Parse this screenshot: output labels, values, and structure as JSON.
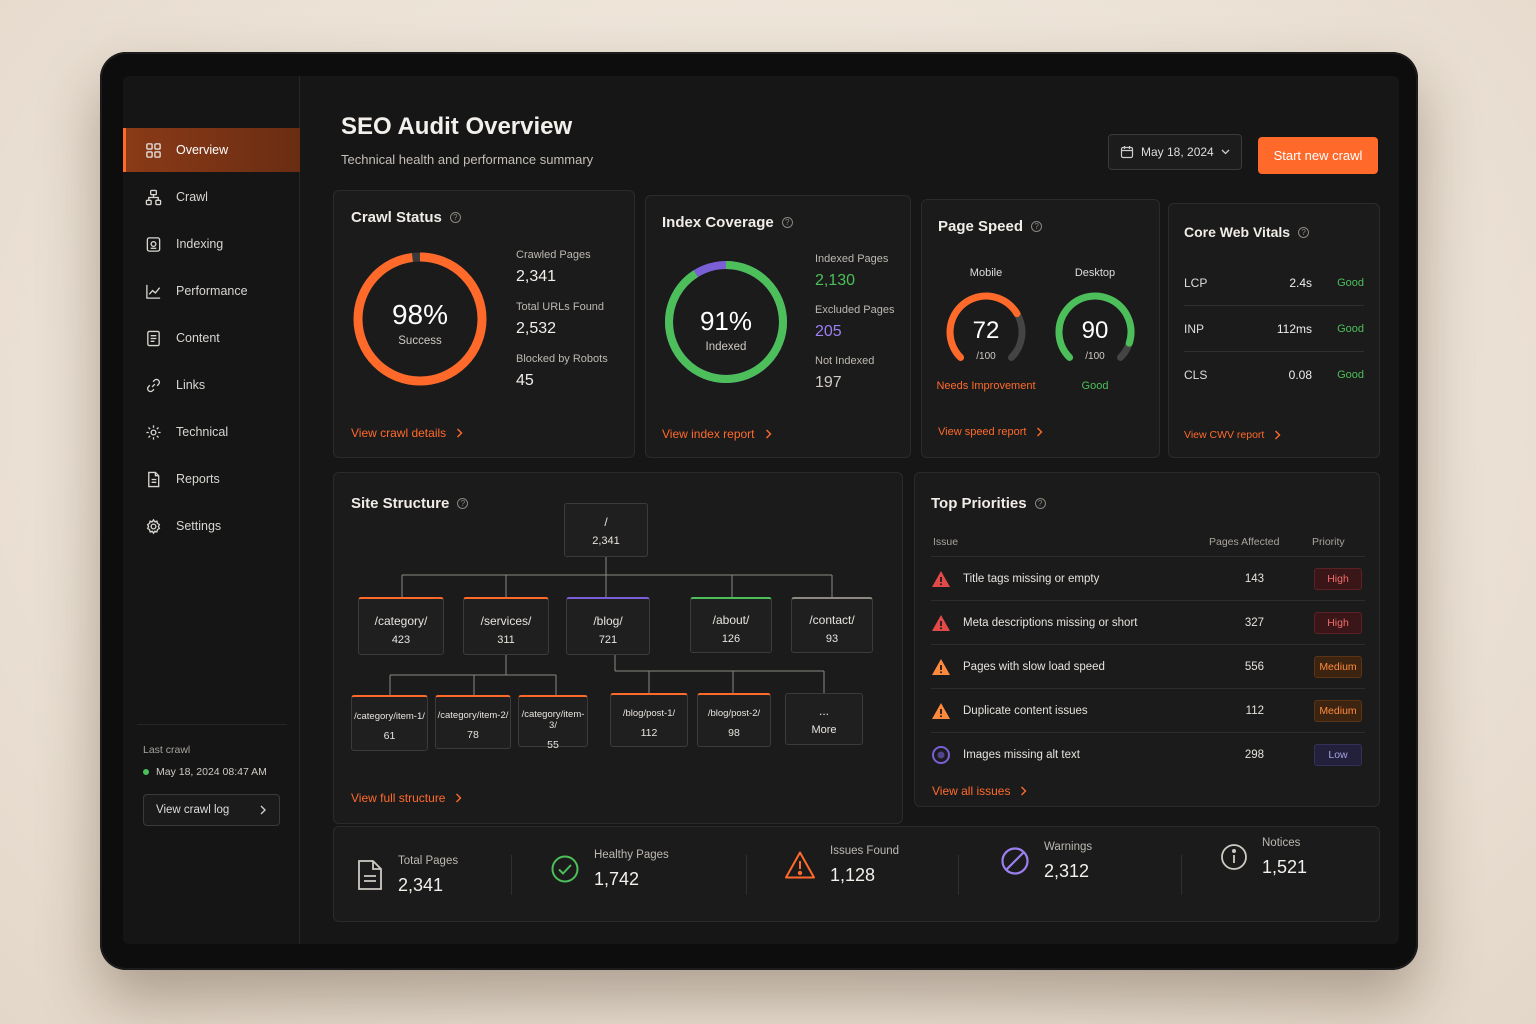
{
  "colors": {
    "accent": "#ff6a2b",
    "good": "#4cbf5a",
    "purple": "#7a5fd6",
    "high": "#e24a4a",
    "medium": "#ff8a3d"
  },
  "sidebar": {
    "items": [
      {
        "label": "Overview",
        "icon": "grid-icon",
        "active": true
      },
      {
        "label": "Crawl",
        "icon": "sitemap-icon"
      },
      {
        "label": "Indexing",
        "icon": "index-icon"
      },
      {
        "label": "Performance",
        "icon": "chart-line-icon"
      },
      {
        "label": "Content",
        "icon": "document-icon"
      },
      {
        "label": "Links",
        "icon": "link-icon"
      },
      {
        "label": "Technical",
        "icon": "gear-icon"
      },
      {
        "label": "Reports",
        "icon": "report-icon"
      },
      {
        "label": "Settings",
        "icon": "settings-icon"
      }
    ],
    "last_crawl_label": "Last crawl",
    "last_crawl_date": "May 18, 2024 08:47 AM",
    "crawl_log_button": "View crawl log"
  },
  "header": {
    "title": "SEO Audit Overview",
    "subtitle": "Technical health and performance summary",
    "date": "May 18, 2024",
    "start_button": "Start new crawl"
  },
  "crawl_status": {
    "title": "Crawl Status",
    "percent": "98%",
    "percent_value": 98,
    "percent_label": "Success",
    "crawled_label": "Crawled Pages",
    "crawled_value": "2,341",
    "total_label": "Total URLs Found",
    "total_value": "2,532",
    "blocked_label": "Blocked by Robots",
    "blocked_value": "45",
    "link": "View crawl details"
  },
  "index_coverage": {
    "title": "Index Coverage",
    "percent": "91%",
    "percent_value": 91,
    "percent_label": "Indexed",
    "indexed_label": "Indexed Pages",
    "indexed_value": "2,130",
    "excluded_label": "Excluded Pages",
    "excluded_value": "205",
    "not_indexed_label": "Not Indexed",
    "not_indexed_value": "197",
    "link": "View index report"
  },
  "page_speed": {
    "title": "Page Speed",
    "mobile": {
      "label": "Mobile",
      "score": "72",
      "score_value": 72,
      "max": "/100",
      "status": "Needs Improvement"
    },
    "desktop": {
      "label": "Desktop",
      "score": "90",
      "score_value": 90,
      "max": "/100",
      "status": "Good"
    },
    "link": "View speed report"
  },
  "cwv": {
    "title": "Core Web Vitals",
    "rows": [
      {
        "metric": "LCP",
        "value": "2.4s",
        "status": "Good"
      },
      {
        "metric": "INP",
        "value": "112ms",
        "status": "Good"
      },
      {
        "metric": "CLS",
        "value": "0.08",
        "status": "Good"
      }
    ],
    "link": "View CWV report"
  },
  "site_structure": {
    "title": "Site Structure",
    "root": {
      "path": "/",
      "count": "2,341"
    },
    "level1": [
      {
        "path": "/category/",
        "count": "423"
      },
      {
        "path": "/services/",
        "count": "311"
      },
      {
        "path": "/blog/",
        "count": "721"
      },
      {
        "path": "/about/",
        "count": "126"
      },
      {
        "path": "/contact/",
        "count": "93"
      }
    ],
    "level2": [
      {
        "path": "/category/item-1/",
        "count": "61"
      },
      {
        "path": "/category/item-2/",
        "count": "78"
      },
      {
        "path": "/category/item-3/",
        "count": "55"
      },
      {
        "path": "/blog/post-1/",
        "count": "112"
      },
      {
        "path": "/blog/post-2/",
        "count": "98"
      },
      {
        "path": "...",
        "count": "More"
      }
    ],
    "link": "View full structure"
  },
  "priorities": {
    "title": "Top Priorities",
    "col_issue": "Issue",
    "col_pages": "Pages Affected",
    "col_priority": "Priority",
    "rows": [
      {
        "issue": "Title tags missing or empty",
        "pages": "143",
        "priority": "High"
      },
      {
        "issue": "Meta descriptions missing or short",
        "pages": "327",
        "priority": "High"
      },
      {
        "issue": "Pages with slow load speed",
        "pages": "556",
        "priority": "Medium"
      },
      {
        "issue": "Duplicate content issues",
        "pages": "112",
        "priority": "Medium"
      },
      {
        "issue": "Images missing alt text",
        "pages": "298",
        "priority": "Low"
      }
    ],
    "link": "View all issues"
  },
  "summary": [
    {
      "label": "Total Pages",
      "value": "2,341",
      "icon": "document-icon"
    },
    {
      "label": "Healthy Pages",
      "value": "1,742",
      "icon": "check-circle-icon"
    },
    {
      "label": "Issues Found",
      "value": "1,128",
      "icon": "warning-icon"
    },
    {
      "label": "Warnings",
      "value": "2,312",
      "icon": "blocked-icon"
    },
    {
      "label": "Notices",
      "value": "1,521",
      "icon": "info-icon"
    }
  ]
}
